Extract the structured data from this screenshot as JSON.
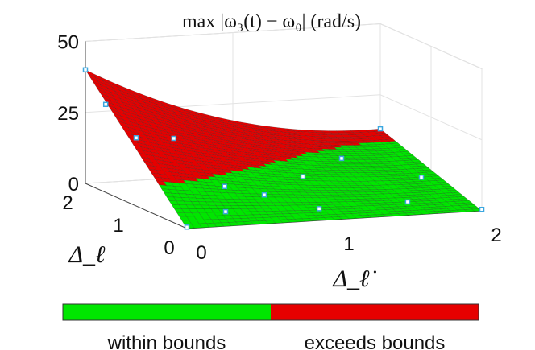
{
  "chart_data": {
    "type": "surface",
    "title": "max |ω₃(t) − ω₀| (rad/s)",
    "xlabel": "Δ_ℓ̇",
    "ylabel": "Δ_ℓ",
    "zlabel": "",
    "xlim": [
      0,
      2
    ],
    "ylim": [
      0,
      2
    ],
    "zlim": [
      0,
      50
    ],
    "xticks": [
      "0",
      "1",
      "2"
    ],
    "yticks": [
      "0",
      "1",
      "2"
    ],
    "zticks": [
      "0",
      "25",
      "50"
    ],
    "grid": true,
    "surface_corner_values": {
      "x0_y0": 0,
      "x0_y2": 40,
      "x2_y0": 0,
      "x2_y2": 13
    },
    "threshold": 11,
    "colors": {
      "within": "#00e600",
      "exceeds": "#e60000",
      "marker": "#3ba7e0"
    },
    "sample_points": [
      {
        "x": 0.0,
        "y": 0.0,
        "z": 0.5
      },
      {
        "x": 0.0,
        "y": 1.6,
        "z": 31
      },
      {
        "x": 0.0,
        "y": 1.0,
        "z": 24
      },
      {
        "x": 0.0,
        "y": 2.0,
        "z": 40
      },
      {
        "x": 0.6,
        "y": 2.0,
        "z": 14
      },
      {
        "x": 0.6,
        "y": 1.0,
        "z": 5
      },
      {
        "x": 0.4,
        "y": 0.4,
        "z": 1.5
      },
      {
        "x": 0.8,
        "y": 0.8,
        "z": 3
      },
      {
        "x": 1.2,
        "y": 1.2,
        "z": 5
      },
      {
        "x": 1.0,
        "y": 0.3,
        "z": 1.5
      },
      {
        "x": 1.6,
        "y": 0.3,
        "z": 2
      },
      {
        "x": 2.0,
        "y": 2.0,
        "z": 13
      },
      {
        "x": 1.9,
        "y": 0.9,
        "z": 5
      },
      {
        "x": 1.6,
        "y": 1.6,
        "z": 7
      },
      {
        "x": 2.0,
        "y": 0.0,
        "z": 0.5
      }
    ],
    "legend": {
      "placement": "bottom",
      "entries": [
        "within bounds",
        "exceeds bounds"
      ]
    }
  }
}
